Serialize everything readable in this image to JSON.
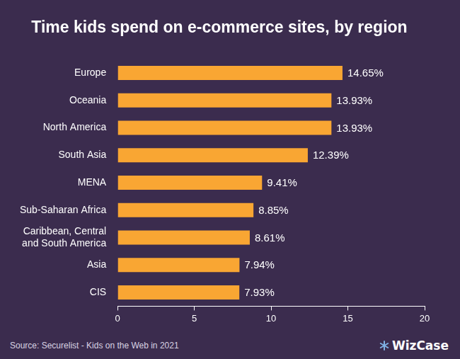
{
  "chart_data": {
    "type": "bar",
    "orientation": "horizontal",
    "title": "Time kids spend on e-commerce sites, by region",
    "categories": [
      "Europe",
      "Oceania",
      "North America",
      "South Asia",
      "MENA",
      "Sub-Saharan Africa",
      "Caribbean, Central and South America",
      "Asia",
      "CIS"
    ],
    "values": [
      14.65,
      13.93,
      13.93,
      12.39,
      9.41,
      8.85,
      8.61,
      7.94,
      7.93
    ],
    "value_labels": [
      "14.65%",
      "13.93%",
      "13.93%",
      "12.39%",
      "9.41%",
      "8.85%",
      "8.61%",
      "7.94%",
      "7.93%"
    ],
    "data_labels": true,
    "color": "#f9a633",
    "xlim": [
      0,
      20
    ],
    "xticks": [
      0,
      5,
      10,
      15,
      20
    ],
    "grid": false,
    "source": "Source: Securelist - Kids on the Web in 2021",
    "logo": "WizCase"
  }
}
